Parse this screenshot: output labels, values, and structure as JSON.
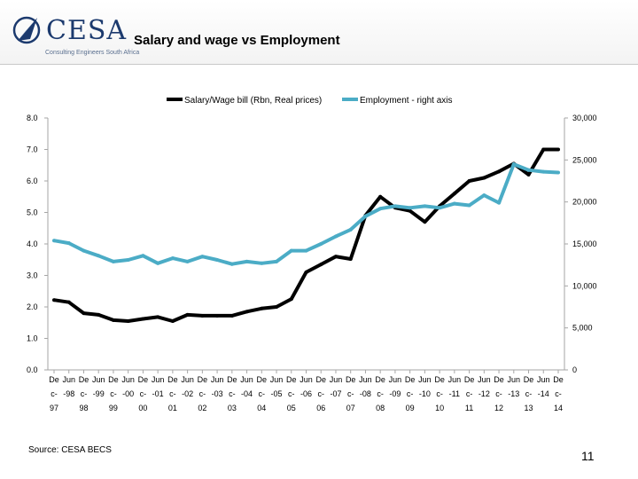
{
  "header": {
    "logo_text": "CESA",
    "logo_tagline": "Consulting Engineers South Africa",
    "title": "Salary and wage vs Employment"
  },
  "source": "Source: CESA BECS",
  "page_number": "11",
  "colors": {
    "salary": "#000000",
    "employment": "#4bacc6",
    "axis": "#a6a6a6",
    "brand": "#1c3a6e"
  },
  "icons": {
    "logo": "cesa-logo-icon"
  },
  "chart_data": {
    "type": "line",
    "title": "",
    "xlabel": "",
    "ylabel_left": "",
    "ylabel_right": "",
    "ylim_left": [
      0,
      8
    ],
    "ylim_right": [
      0,
      30000
    ],
    "yticks_left": [
      "0.0",
      "1.0",
      "2.0",
      "3.0",
      "4.0",
      "5.0",
      "6.0",
      "7.0",
      "8.0"
    ],
    "yticks_right": [
      "0",
      "5,000",
      "10,000",
      "15,000",
      "20,000",
      "25,000",
      "30,000"
    ],
    "grid": false,
    "legend_position": "top-center",
    "x_tick_labels": [
      "Dec-97",
      "Jun-98",
      "Dec-98",
      "Jun-99",
      "Dec-99",
      "Jun-00",
      "Dec-00",
      "Jun-01",
      "Dec-01",
      "Jun-02",
      "Dec-02",
      "Jun-03",
      "Dec-03",
      "Jun-04",
      "Dec-04",
      "Jun-05",
      "Dec-05",
      "Jun-06",
      "Dec-06",
      "Jun-07",
      "Dec-07",
      "Jun-08",
      "Dec-08",
      "Jun-09",
      "Dec-09",
      "Jun-10",
      "Dec-10",
      "Jun-11",
      "Dec-11",
      "Jun-12",
      "Dec-12",
      "Jun-13",
      "Dec-13",
      "Jun-14",
      "Dec-14"
    ],
    "x_tick_lines": [
      [
        "De",
        "c-",
        "97"
      ],
      [
        "Jun",
        "-98",
        ""
      ],
      [
        "De",
        "c-",
        "98"
      ],
      [
        "Jun",
        "-99",
        ""
      ],
      [
        "De",
        "c-",
        "99"
      ],
      [
        "Jun",
        "-00",
        ""
      ],
      [
        "De",
        "c-",
        "00"
      ],
      [
        "Jun",
        "-01",
        ""
      ],
      [
        "De",
        "c-",
        "01"
      ],
      [
        "Jun",
        "-02",
        ""
      ],
      [
        "De",
        "c-",
        "02"
      ],
      [
        "Jun",
        "-03",
        ""
      ],
      [
        "De",
        "c-",
        "03"
      ],
      [
        "Jun",
        "-04",
        ""
      ],
      [
        "De",
        "c-",
        "04"
      ],
      [
        "Jun",
        "-05",
        ""
      ],
      [
        "De",
        "c-",
        "05"
      ],
      [
        "Jun",
        "-06",
        ""
      ],
      [
        "De",
        "c-",
        "06"
      ],
      [
        "Jun",
        "-07",
        ""
      ],
      [
        "De",
        "c-",
        "07"
      ],
      [
        "Jun",
        "-08",
        ""
      ],
      [
        "De",
        "c-",
        "08"
      ],
      [
        "Jun",
        "-09",
        ""
      ],
      [
        "De",
        "c-",
        "09"
      ],
      [
        "Jun",
        "-10",
        ""
      ],
      [
        "De",
        "c-",
        "10"
      ],
      [
        "Jun",
        "-11",
        ""
      ],
      [
        "De",
        "c-",
        "11"
      ],
      [
        "Jun",
        "-12",
        ""
      ],
      [
        "De",
        "c-",
        "12"
      ],
      [
        "Jun",
        "-13",
        ""
      ],
      [
        "De",
        "c-",
        "13"
      ],
      [
        "Jun",
        "-14",
        ""
      ],
      [
        "De",
        "c-",
        "14"
      ]
    ],
    "series": [
      {
        "name": "Salary/Wage bill (Rbn, Real prices)",
        "axis": "left",
        "color": "#000000",
        "values": [
          2.22,
          2.15,
          1.8,
          1.75,
          1.58,
          1.55,
          1.62,
          1.68,
          1.55,
          1.75,
          1.72,
          1.72,
          1.72,
          1.85,
          1.95,
          2.0,
          2.25,
          3.1,
          3.35,
          3.6,
          3.52,
          4.9,
          5.5,
          5.15,
          5.05,
          4.7,
          5.2,
          5.6,
          6.0,
          6.1,
          6.3,
          6.55,
          6.2,
          7.0,
          7.0
        ]
      },
      {
        "name": "Employment - right axis",
        "axis": "right",
        "color": "#4bacc6",
        "values": [
          15400,
          15100,
          14200,
          13600,
          12900,
          13100,
          13600,
          12700,
          13300,
          12900,
          13500,
          13100,
          12600,
          12900,
          12700,
          12900,
          14200,
          14200,
          15000,
          15900,
          16700,
          18300,
          19200,
          19500,
          19300,
          19500,
          19300,
          19800,
          19600,
          20800,
          19900,
          24500,
          23800,
          23600,
          23500
        ]
      }
    ]
  }
}
